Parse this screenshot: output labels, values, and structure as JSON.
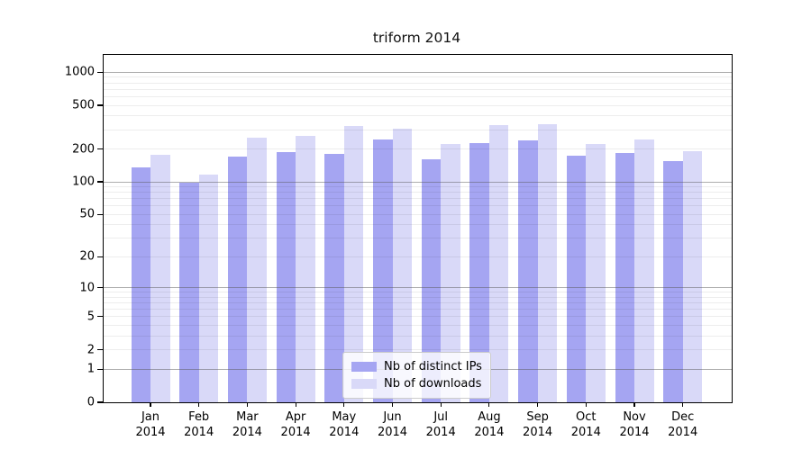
{
  "title": "triform 2014",
  "y_axis": {
    "tick_labels": [
      "0",
      "1",
      "2",
      "5",
      "10",
      "20",
      "50",
      "100",
      "200",
      "500",
      "1000"
    ]
  },
  "x_axis": {
    "months": [
      "Jan",
      "Feb",
      "Mar",
      "Apr",
      "May",
      "Jun",
      "Jul",
      "Aug",
      "Sep",
      "Oct",
      "Nov",
      "Dec"
    ],
    "year": "2014"
  },
  "legend": {
    "items": [
      {
        "label": "Nb of distinct IPs",
        "color": "#a5a5f2"
      },
      {
        "label": "Nb of downloads",
        "color": "#d9d9f8"
      }
    ]
  },
  "colors": {
    "distinct_ips_bar": "#a5a5f2",
    "downloads_bar": "#d9d9f8",
    "major_gridline": "#555555",
    "minor_gridline": "#e8e8e8",
    "spine": "#000000"
  },
  "chart_data": {
    "type": "bar",
    "title": "triform 2014",
    "categories": [
      "Jan 2014",
      "Feb 2014",
      "Mar 2014",
      "Apr 2014",
      "May 2014",
      "Jun 2014",
      "Jul 2014",
      "Aug 2014",
      "Sep 2014",
      "Oct 2014",
      "Nov 2014",
      "Dec 2014"
    ],
    "series": [
      {
        "name": "Nb of distinct IPs",
        "values": [
          136,
          98,
          170,
          186,
          180,
          245,
          162,
          225,
          238,
          172,
          183,
          156
        ]
      },
      {
        "name": "Nb of downloads",
        "values": [
          177,
          117,
          253,
          264,
          325,
          308,
          221,
          329,
          334,
          224,
          243,
          191
        ]
      }
    ],
    "xlabel": "",
    "ylabel": "",
    "yscale": "log1p",
    "ylim": [
      0,
      1440
    ],
    "y_ticks": [
      0,
      1,
      2,
      5,
      10,
      20,
      50,
      100,
      200,
      500,
      1000
    ],
    "major_grid_values": [
      1,
      10,
      100,
      1000
    ],
    "minor_grid_values": [
      2,
      3,
      4,
      5,
      6,
      7,
      8,
      9,
      20,
      30,
      40,
      50,
      60,
      70,
      80,
      90,
      200,
      300,
      400,
      500,
      600,
      700,
      800,
      900
    ],
    "grid": true,
    "legend_position": "lower-center"
  }
}
